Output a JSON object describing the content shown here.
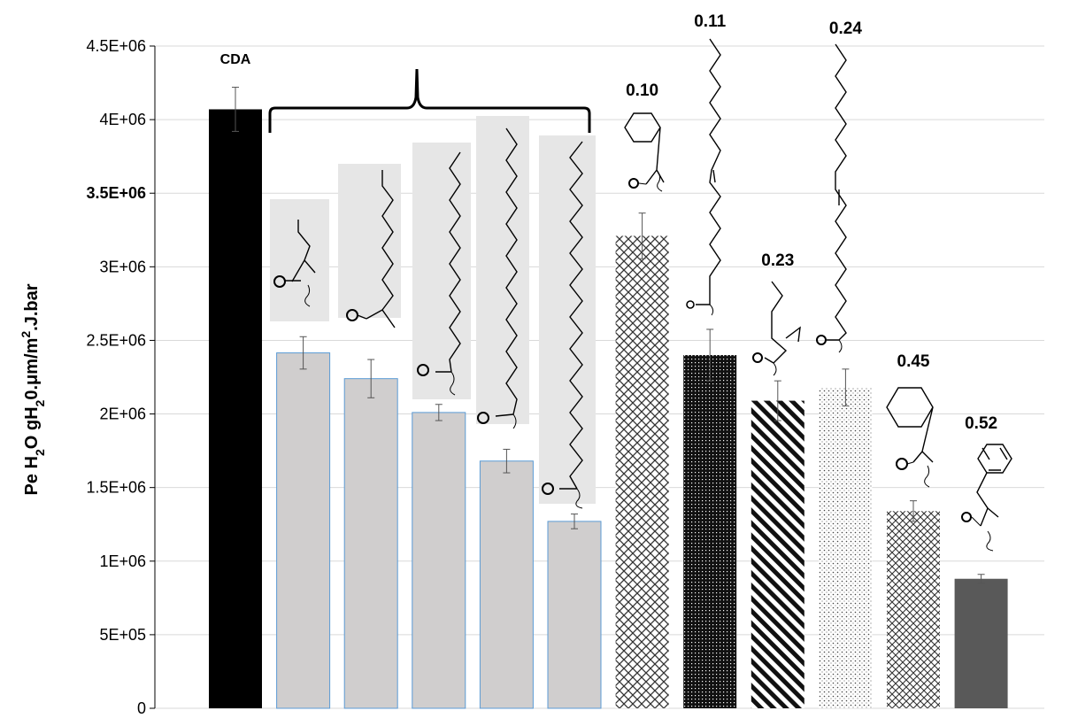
{
  "chart_data": {
    "type": "bar",
    "title": "",
    "xlabel": "",
    "ylabel": "Pe H2O gH2O.μm/m2.J.bar",
    "ylabel_parts": [
      "Pe H",
      "2",
      "O gH",
      "2",
      "0.μm/m",
      "2",
      ".J.bar"
    ],
    "ylim": [
      0,
      4500000
    ],
    "grid": "horizontal",
    "y_ticks": [
      "0",
      "5E+05",
      "1E+06",
      "1.5E+06",
      "2E+06",
      "2.5E+06",
      "3E+06",
      "3.5E+06",
      "4E+06",
      "4.5E+06"
    ],
    "y_tick_values": [
      0,
      500000,
      1000000,
      1500000,
      2000000,
      2500000,
      3000000,
      3500000,
      4000000,
      4500000
    ],
    "bars": [
      {
        "label": "CDA",
        "value": 4070000,
        "err": 150000,
        "style": "solid-black"
      },
      {
        "label": "",
        "value": 2415000,
        "err": 110000,
        "style": "gray"
      },
      {
        "label": "",
        "value": 2240000,
        "err": 130000,
        "style": "gray"
      },
      {
        "label": "",
        "value": 2010000,
        "err": 55000,
        "style": "gray"
      },
      {
        "label": "",
        "value": 1680000,
        "err": 80000,
        "style": "gray"
      },
      {
        "label": "",
        "value": 1270000,
        "err": 50000,
        "style": "gray"
      },
      {
        "label": "0.10",
        "value": 3210000,
        "err": 155000,
        "style": "crosshatch"
      },
      {
        "label": "0.11",
        "value": 2400000,
        "err": 175000,
        "style": "dotted-black"
      },
      {
        "label": "0.23",
        "value": 2090000,
        "err": 135000,
        "style": "diagonal"
      },
      {
        "label": "0.24",
        "value": 2180000,
        "err": 125000,
        "style": "sparse-dots"
      },
      {
        "label": "0.45",
        "value": 1340000,
        "err": 70000,
        "style": "crosshatch-small"
      },
      {
        "label": "0.52",
        "value": 880000,
        "err": 30000,
        "style": "dark-gray"
      }
    ]
  }
}
